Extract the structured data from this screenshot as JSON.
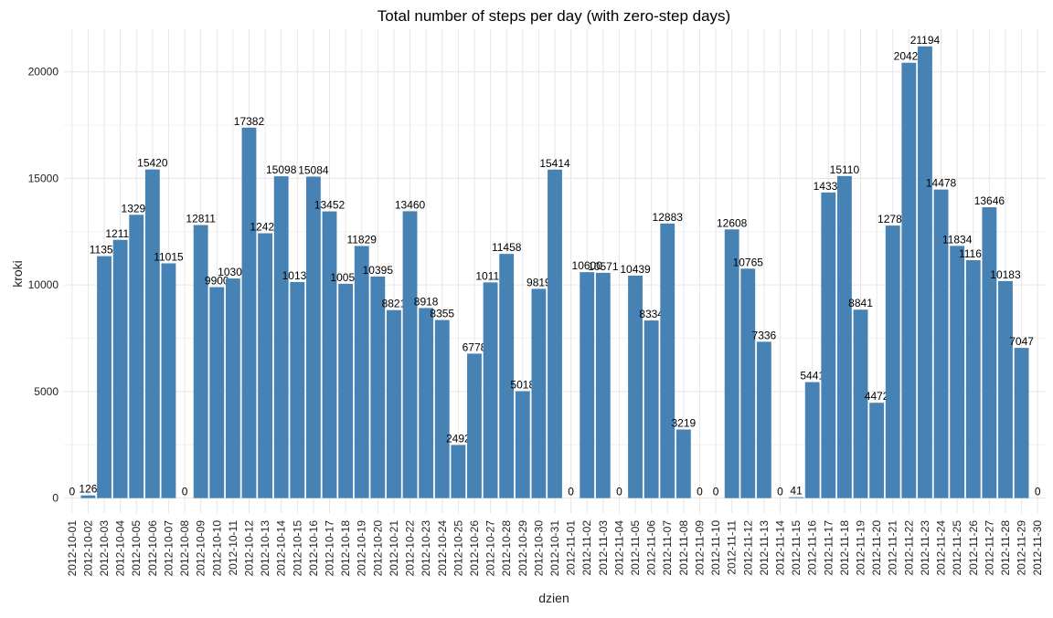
{
  "chart_data": {
    "type": "bar",
    "title": "Total number of steps per day (with zero-step days)",
    "xlabel": "dzien",
    "ylabel": "kroki",
    "ylim": [
      -700,
      22000
    ],
    "yticks": [
      0,
      5000,
      10000,
      15000,
      20000
    ],
    "grid": true,
    "bar_color": "#4682B4",
    "categories": [
      "2012-10-01",
      "2012-10-02",
      "2012-10-03",
      "2012-10-04",
      "2012-10-05",
      "2012-10-06",
      "2012-10-07",
      "2012-10-08",
      "2012-10-09",
      "2012-10-10",
      "2012-10-11",
      "2012-10-12",
      "2012-10-13",
      "2012-10-14",
      "2012-10-15",
      "2012-10-16",
      "2012-10-17",
      "2012-10-18",
      "2012-10-19",
      "2012-10-20",
      "2012-10-21",
      "2012-10-22",
      "2012-10-23",
      "2012-10-24",
      "2012-10-25",
      "2012-10-26",
      "2012-10-27",
      "2012-10-28",
      "2012-10-29",
      "2012-10-30",
      "2012-10-31",
      "2012-11-01",
      "2012-11-02",
      "2012-11-03",
      "2012-11-04",
      "2012-11-05",
      "2012-11-06",
      "2012-11-07",
      "2012-11-08",
      "2012-11-09",
      "2012-11-10",
      "2012-11-11",
      "2012-11-12",
      "2012-11-13",
      "2012-11-14",
      "2012-11-15",
      "2012-11-16",
      "2012-11-17",
      "2012-11-18",
      "2012-11-19",
      "2012-11-20",
      "2012-11-21",
      "2012-11-22",
      "2012-11-23",
      "2012-11-24",
      "2012-11-25",
      "2012-11-26",
      "2012-11-27",
      "2012-11-28",
      "2012-11-29",
      "2012-11-30"
    ],
    "values": [
      0,
      126,
      11352,
      12116,
      13294,
      15420,
      11015,
      0,
      12811,
      9900,
      10304,
      17382,
      12426,
      15098,
      10139,
      15084,
      13452,
      10056,
      11829,
      10395,
      8821,
      13460,
      8918,
      8355,
      2492,
      6778,
      10119,
      11458,
      5018,
      9819,
      15414,
      0,
      10600,
      10571,
      0,
      10439,
      8334,
      12883,
      3219,
      0,
      0,
      12608,
      10765,
      7336,
      0,
      41,
      5441,
      14339,
      15110,
      8841,
      4472,
      12787,
      20427,
      21194,
      14478,
      11834,
      11162,
      13646,
      10183,
      7047,
      0
    ]
  }
}
